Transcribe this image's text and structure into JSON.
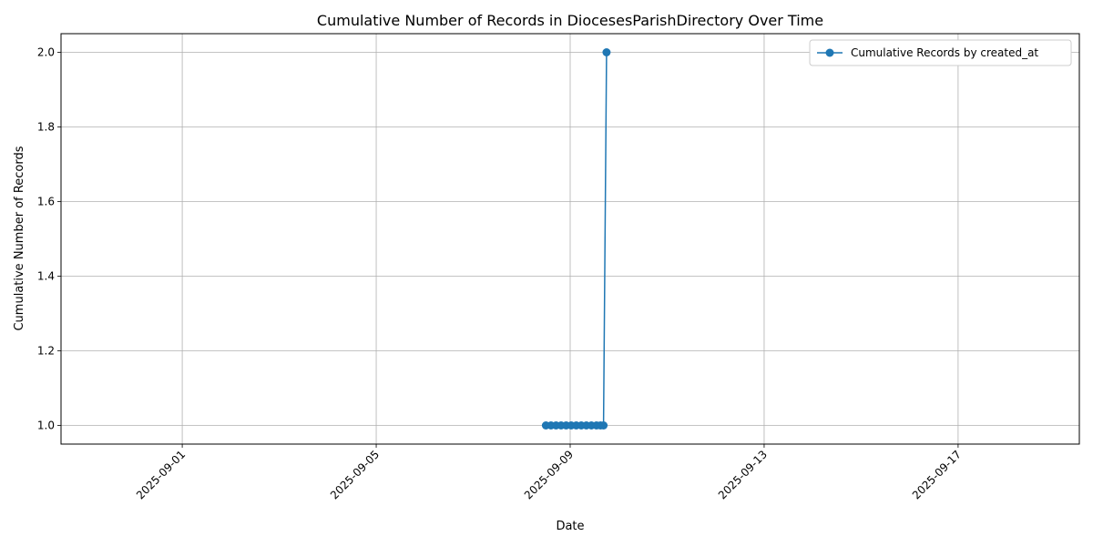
{
  "chart_data": {
    "type": "line",
    "title": "Cumulative Number of Records in DiocesesParishDirectory Over Time",
    "xlabel": "Date",
    "ylabel": "Cumulative Number of Records",
    "x_axis_type": "date",
    "xlim": [
      "2025-08-29T12:00",
      "2025-09-19T12:00"
    ],
    "ylim": [
      0.95,
      2.05
    ],
    "x_ticks": [
      "2025-09-01",
      "2025-09-05",
      "2025-09-09",
      "2025-09-13",
      "2025-09-17"
    ],
    "y_ticks": [
      1.0,
      1.2,
      1.4,
      1.6,
      1.8,
      2.0
    ],
    "y_tick_labels": [
      "1.0",
      "1.2",
      "1.4",
      "1.6",
      "1.8",
      "2.0"
    ],
    "grid": true,
    "legend_position": "top-right",
    "colors": {
      "series": "#1f77b4",
      "grid": "#b0b0b0"
    },
    "series": [
      {
        "name": "Cumulative Records by created_at",
        "marker": "circle",
        "points": [
          {
            "x": "2025-09-08T12:00",
            "y": 1
          },
          {
            "x": "2025-09-08T14:30",
            "y": 1
          },
          {
            "x": "2025-09-08T17:00",
            "y": 1
          },
          {
            "x": "2025-09-08T19:30",
            "y": 1
          },
          {
            "x": "2025-09-08T22:00",
            "y": 1
          },
          {
            "x": "2025-09-09T00:30",
            "y": 1
          },
          {
            "x": "2025-09-09T03:00",
            "y": 1
          },
          {
            "x": "2025-09-09T05:30",
            "y": 1
          },
          {
            "x": "2025-09-09T08:00",
            "y": 1
          },
          {
            "x": "2025-09-09T10:30",
            "y": 1
          },
          {
            "x": "2025-09-09T13:00",
            "y": 1
          },
          {
            "x": "2025-09-09T15:00",
            "y": 1
          },
          {
            "x": "2025-09-09T16:30",
            "y": 1
          },
          {
            "x": "2025-09-09T18:00",
            "y": 2
          }
        ]
      }
    ]
  }
}
